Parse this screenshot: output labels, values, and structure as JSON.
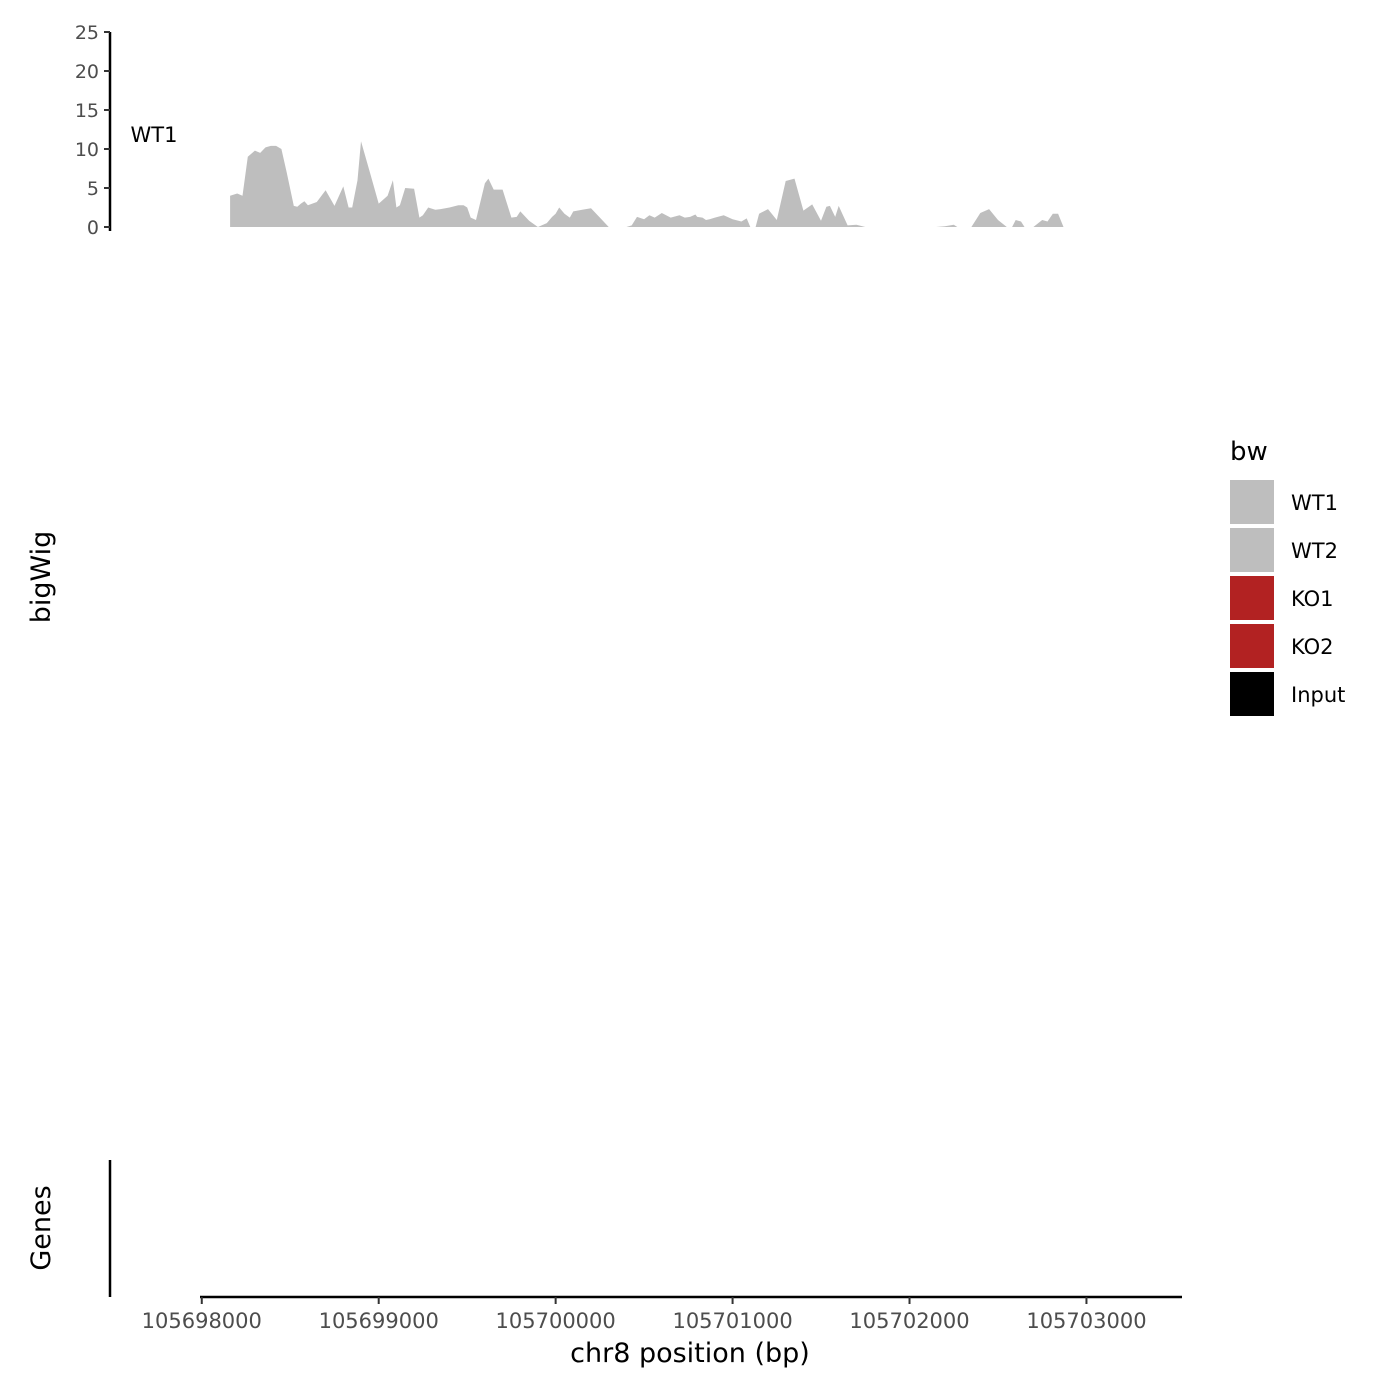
{
  "chart_data": {
    "type": "area",
    "title": "",
    "xlabel": "chr8 position (bp)",
    "ylabel": "bigWig",
    "genes_label": "Genes",
    "xlim": [
      105697990,
      105703540
    ],
    "x_ticks": [
      105698000,
      105699000,
      105700000,
      105701000,
      105702000,
      105703000
    ],
    "x_tick_labels": [
      "105698000",
      "105699000",
      "105700000",
      "105701000",
      "105702000",
      "105703000"
    ],
    "ylim": [
      0,
      25
    ],
    "y_ticks": [
      0,
      5,
      10,
      15,
      20,
      25
    ],
    "y_tick_labels": [
      "0",
      "5",
      "10",
      "15",
      "20",
      "25"
    ],
    "legend": {
      "title": "bw",
      "position": "right",
      "entries": [
        {
          "label": "WT1",
          "color": "#bebebe"
        },
        {
          "label": "WT2",
          "color": "#bebebe"
        },
        {
          "label": "KO1",
          "color": "#b22222"
        },
        {
          "label": "KO2",
          "color": "#b22222"
        },
        {
          "label": "Input",
          "color": "#000000"
        }
      ]
    },
    "series": [
      {
        "name": "WT1",
        "color": "#bebebe",
        "x": [
          105698160,
          105698200,
          105698230,
          105698260,
          105698300,
          105698330,
          105698360,
          105698390,
          105698420,
          105698450,
          105698480,
          105698520,
          105698540,
          105698560,
          105698580,
          105698600,
          105698650,
          105698700,
          105698750,
          105698800,
          105698830,
          105698850,
          105698880,
          105698900,
          105698950,
          105699000,
          105699050,
          105699080,
          105699100,
          105699120,
          105699150,
          105699200,
          105699230,
          105699250,
          105699280,
          105699320,
          105699350,
          105699400,
          105699450,
          105699480,
          105699500,
          105699520,
          105699550,
          105699600,
          105699620,
          105699650,
          105699700,
          105699750,
          105699780,
          105699800,
          105699850,
          105699900,
          105699950,
          105699980,
          105700000,
          105700020,
          105700050,
          105700080,
          105700100,
          105700150,
          105700200,
          105700250,
          105700300,
          105700350,
          105700400,
          105700430,
          105700460,
          105700500,
          105700530,
          105700560,
          105700600,
          105700650,
          105700700,
          105700730,
          105700760,
          105700790,
          105700800,
          105700830,
          105700850,
          105700870,
          105700900,
          105700950,
          105701000,
          105701050,
          105701080,
          105701100,
          105701130,
          105701150,
          105701200,
          105701250,
          105701300,
          105701350,
          105701400,
          105701450,
          105701500,
          105701530,
          105701550,
          105701580,
          105701600,
          105701650,
          105701700,
          105701750,
          105701800,
          105701850,
          105701900,
          105701950,
          105702000,
          105702050,
          105702100,
          105702150,
          105702200,
          105702250,
          105702270,
          105702300,
          105702350,
          105702400,
          105702450,
          105702500,
          105702550,
          105702580,
          105702600,
          105702630,
          105702650,
          105702700,
          105702750,
          105702780,
          105702810,
          105702840,
          105702870,
          105702900,
          105702950,
          105703000,
          105703050,
          105703060
        ],
        "y": [
          4,
          4.3,
          4,
          9,
          9.8,
          9.5,
          10.2,
          10.4,
          10.4,
          10,
          7,
          2.7,
          2.6,
          3,
          3.3,
          2.8,
          3.2,
          4.7,
          2.7,
          5.2,
          2.5,
          2.5,
          6,
          11,
          7,
          3,
          4,
          6,
          2.5,
          2.8,
          5,
          4.9,
          1.2,
          1.5,
          2.5,
          2.2,
          2.3,
          2.5,
          2.8,
          2.8,
          2.5,
          1.2,
          0.9,
          5.6,
          6.2,
          4.8,
          4.8,
          1.2,
          1.3,
          2,
          0.8,
          0,
          0.5,
          1.3,
          1.7,
          2.5,
          1.7,
          1.2,
          2,
          2.2,
          2.4,
          1.2,
          0,
          0,
          0,
          0.2,
          1.3,
          1,
          1.5,
          1.2,
          1.8,
          1.2,
          1.5,
          1.2,
          1.3,
          1.6,
          1.3,
          1.2,
          0.9,
          1,
          1.2,
          1.5,
          1,
          0.7,
          1.1,
          0,
          0,
          1.7,
          2.3,
          0.9,
          5.9,
          6.2,
          2.1,
          2.9,
          0.8,
          2.6,
          2.7,
          1.3,
          2.7,
          0.2,
          0.3,
          0,
          0,
          0,
          0,
          0,
          0,
          0,
          0,
          0,
          0.1,
          0.3,
          0,
          0,
          0,
          1.8,
          2.3,
          0.9,
          0,
          0,
          0.9,
          0.7,
          0,
          0,
          0.9,
          0.7,
          1.7,
          1.7,
          0,
          0,
          0,
          0,
          0,
          0
        ],
        "segments": []
      }
    ]
  }
}
